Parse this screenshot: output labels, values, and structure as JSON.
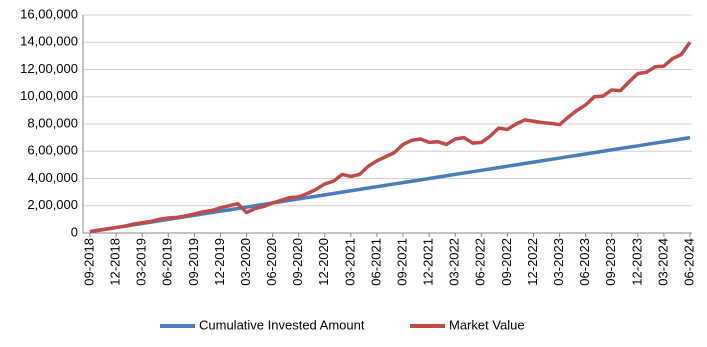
{
  "chart_data": {
    "type": "line",
    "categories": [
      "09-2018",
      null,
      null,
      "12-2018",
      null,
      null,
      "03-2019",
      null,
      null,
      "06-2019",
      null,
      null,
      "09-2019",
      null,
      null,
      "12-2019",
      null,
      null,
      "03-2020",
      null,
      null,
      "06-2020",
      null,
      null,
      "09-2020",
      null,
      null,
      "12-2020",
      null,
      null,
      "03-2021",
      null,
      null,
      "06-2021",
      null,
      null,
      "09-2021",
      null,
      null,
      "12-2021",
      null,
      null,
      "03-2022",
      null,
      null,
      "06-2022",
      null,
      null,
      "09-2022",
      null,
      null,
      "12-2022",
      null,
      null,
      "03-2023",
      null,
      null,
      "06-2023",
      null,
      null,
      "09-2023",
      null,
      null,
      "12-2023",
      null,
      null,
      "03-2024",
      null,
      null,
      "06-2024"
    ],
    "series": [
      {
        "name": "Cumulative Invested Amount",
        "color": "#4a7ebb",
        "values": [
          10000,
          20000,
          30000,
          40000,
          50000,
          60000,
          70000,
          80000,
          90000,
          100000,
          110000,
          120000,
          130000,
          140000,
          150000,
          160000,
          170000,
          180000,
          190000,
          200000,
          210000,
          220000,
          230000,
          240000,
          250000,
          260000,
          270000,
          280000,
          290000,
          300000,
          310000,
          320000,
          330000,
          340000,
          350000,
          360000,
          370000,
          380000,
          390000,
          400000,
          410000,
          420000,
          430000,
          440000,
          450000,
          460000,
          470000,
          480000,
          490000,
          500000,
          510000,
          520000,
          530000,
          540000,
          550000,
          560000,
          570000,
          580000,
          590000,
          600000,
          610000,
          620000,
          630000,
          640000,
          650000,
          660000,
          670000,
          680000,
          690000,
          700000
        ]
      },
      {
        "name": "Market Value",
        "color": "#be4b48",
        "values": [
          10000,
          20000,
          30000,
          40000,
          50000,
          65000,
          75000,
          85000,
          100000,
          110000,
          115000,
          125000,
          140000,
          155000,
          165000,
          185000,
          200000,
          215000,
          150000,
          180000,
          195000,
          220000,
          240000,
          260000,
          265000,
          290000,
          320000,
          360000,
          380000,
          430000,
          415000,
          430000,
          490000,
          530000,
          560000,
          590000,
          650000,
          680000,
          690000,
          665000,
          670000,
          650000,
          690000,
          700000,
          660000,
          665000,
          710000,
          770000,
          760000,
          800000,
          830000,
          820000,
          810000,
          805000,
          795000,
          850000,
          900000,
          940000,
          1000000,
          1005000,
          1050000,
          1045000,
          1110000,
          1170000,
          1180000,
          1220000,
          1225000,
          1280000,
          1310000,
          1400000
        ]
      }
    ],
    "ylim": [
      0,
      1600000
    ],
    "yticks": [
      0,
      {
        "value": 200000,
        "label": "2,00,000"
      },
      {
        "value": 400000,
        "label": "4,00,000"
      },
      {
        "value": 600000,
        "label": "6,00,000"
      },
      {
        "value": 800000,
        "label": "8,00,000"
      },
      {
        "value": 1000000,
        "label": "10,00,000"
      },
      {
        "value": 1200000,
        "label": "12,00,000"
      },
      {
        "value": 1400000,
        "label": "14,00,000"
      },
      {
        "value": 1600000,
        "label": "16,00,000"
      }
    ],
    "grid": true,
    "legend": "bottom"
  }
}
